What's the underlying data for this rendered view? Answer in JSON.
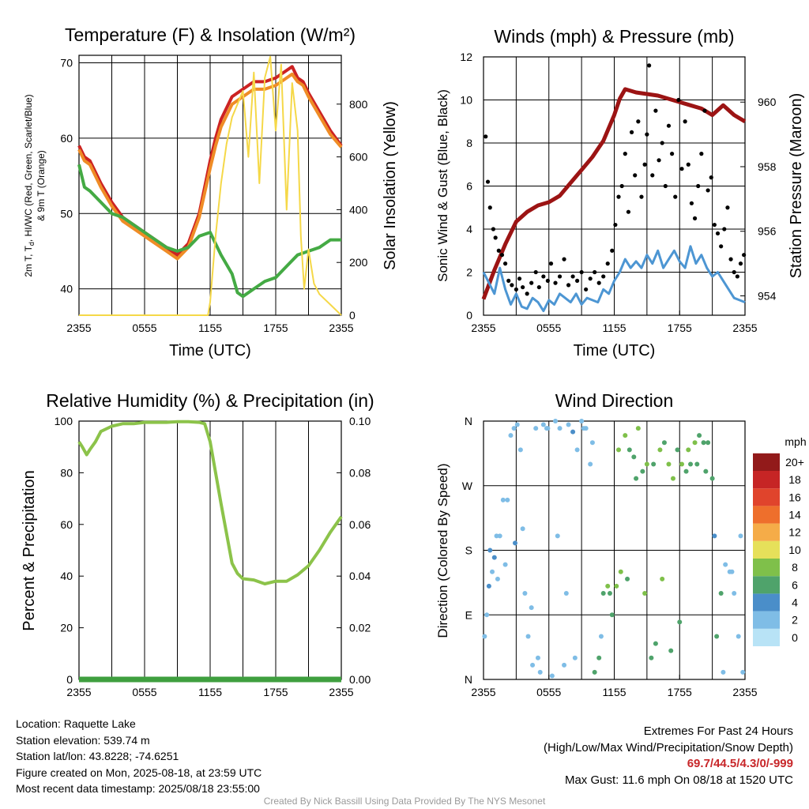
{
  "colors": {
    "temp": "#cc2222",
    "wc": "#ef8c26",
    "dewpoint": "#44aa44",
    "solar": "#f5d848",
    "pressure": "#9c1414",
    "wind": "#4d96d3",
    "gust": "#000000",
    "rh": "#8cc34a",
    "precip": "#3f9f3f"
  },
  "chart_data": [
    {
      "type": "line",
      "title": "Temperature (F) & Insolation (W/m²)",
      "xlabel": "Time (UTC)",
      "ylabel": "2m T, Td, HI/WC (Red, Green, Scarlet/Blue) & 9m T (Orange)",
      "ylabel_lines": [
        "2m T, T",
        "d",
        ", HI/WC (Red, Green, Scarlet/Blue)",
        "& 9m T (Orange)"
      ],
      "y2label": "Solar Insolation (Yellow)",
      "xticks": [
        "2355",
        "0555",
        "1155",
        "1755",
        "2355"
      ],
      "ylim": [
        36.5,
        71
      ],
      "yticks": [
        40,
        50,
        60,
        70
      ],
      "y2lim": [
        0,
        985
      ],
      "y2ticks": [
        0,
        200,
        400,
        600,
        800
      ],
      "x_hours": [
        0,
        24
      ],
      "series": [
        {
          "name": "2m T",
          "color": "temp",
          "x": [
            0,
            0.5,
            1,
            2,
            3,
            4,
            5,
            6,
            7,
            8,
            9,
            10,
            11,
            12,
            12.5,
            13,
            14,
            15,
            16,
            17,
            18,
            19,
            19.5,
            20,
            20.5,
            21,
            22,
            23,
            24
          ],
          "y": [
            59,
            57.5,
            57,
            54,
            51.5,
            49.5,
            48.5,
            47.5,
            46.5,
            45.5,
            44.5,
            46,
            50,
            57,
            60,
            62.5,
            65.5,
            66.5,
            67.5,
            67.5,
            68,
            69,
            69.5,
            68,
            67.5,
            66,
            63.5,
            61,
            59
          ]
        },
        {
          "name": "HI/WC",
          "color": "temp",
          "x": [
            0,
            24
          ],
          "y": [
            null,
            null
          ]
        },
        {
          "name": "9m T",
          "color": "wc",
          "x": [
            0,
            0.5,
            1,
            2,
            3,
            4,
            5,
            6,
            7,
            8,
            9,
            10,
            11,
            12,
            12.5,
            13,
            14,
            15,
            16,
            17,
            18,
            19,
            19.5,
            20,
            20.5,
            21,
            22,
            23,
            24
          ],
          "y": [
            58.5,
            57,
            56.5,
            53.5,
            51,
            49,
            48,
            47,
            46,
            45,
            44,
            45.5,
            49.5,
            56,
            59,
            61.5,
            64.5,
            65.5,
            66.5,
            66.5,
            67,
            68,
            68.5,
            67.5,
            67,
            65.5,
            63,
            60.5,
            58.8
          ]
        },
        {
          "name": "Td",
          "color": "dewpoint",
          "x": [
            0,
            0.5,
            1,
            2,
            3,
            4,
            5,
            6,
            7,
            8,
            9,
            10,
            11,
            12,
            13,
            14,
            14.5,
            15,
            16,
            17,
            18,
            19,
            20,
            21,
            22,
            23,
            24
          ],
          "y": [
            56.5,
            53.5,
            53,
            51.5,
            50,
            49.5,
            48.5,
            47.5,
            46.5,
            45.5,
            45,
            45.5,
            47,
            47.5,
            44.5,
            42,
            39.5,
            39,
            40,
            41,
            41.5,
            43,
            44.5,
            45,
            45.5,
            46.5,
            46.5
          ]
        },
        {
          "name": "Solar",
          "color": "solar",
          "axis": "y2",
          "x": [
            0,
            11.8,
            12,
            12.5,
            13,
            13.5,
            14,
            15,
            15.5,
            16,
            16.5,
            17,
            17.5,
            18,
            18.5,
            19,
            19.5,
            20,
            20.3,
            20.6,
            21,
            21.5,
            22,
            23,
            24
          ],
          "y": [
            0,
            0,
            50,
            300,
            500,
            650,
            750,
            850,
            600,
            920,
            500,
            900,
            980,
            700,
            950,
            400,
            880,
            700,
            300,
            100,
            250,
            120,
            80,
            40,
            0
          ]
        }
      ]
    },
    {
      "type": "line",
      "title": "Winds (mph) & Pressure (mb)",
      "xlabel": "Time (UTC)",
      "ylabel": "Sonic Wind & Gust (Blue, Black)",
      "y2label": "Station Pressure (Maroon)",
      "xticks": [
        "2355",
        "0555",
        "1155",
        "1755",
        "2355"
      ],
      "ylim": [
        0,
        12
      ],
      "yticks": [
        0,
        2,
        4,
        6,
        8,
        10,
        12
      ],
      "y2lim": [
        953.4,
        961.4
      ],
      "y2ticks": [
        954,
        956,
        958,
        960
      ],
      "series": [
        {
          "name": "Pressure",
          "color": "pressure",
          "axis": "y2",
          "x": [
            0,
            1,
            2,
            3,
            4,
            5,
            6,
            7,
            8,
            9,
            10,
            11,
            12,
            12.5,
            13,
            14,
            15,
            16,
            17,
            18,
            19,
            20,
            21,
            22,
            23,
            24
          ],
          "y": [
            953.9,
            954.8,
            955.6,
            956.3,
            956.6,
            956.8,
            956.9,
            957.1,
            957.5,
            957.9,
            958.3,
            958.8,
            959.6,
            960.1,
            960.4,
            960.3,
            960.25,
            960.2,
            960.1,
            960.0,
            959.9,
            959.8,
            959.6,
            959.9,
            959.6,
            959.4
          ]
        },
        {
          "name": "Sonic Wind",
          "color": "wind",
          "x": [
            0,
            0.5,
            1,
            1.5,
            2,
            2.5,
            3,
            3.5,
            4,
            4.5,
            5,
            5.5,
            6,
            6.5,
            7,
            7.5,
            8,
            8.5,
            9,
            9.5,
            10,
            10.5,
            11,
            11.5,
            12,
            12.5,
            13,
            13.5,
            14,
            14.5,
            15,
            15.5,
            16,
            16.5,
            17,
            17.5,
            18,
            18.5,
            19,
            19.5,
            20,
            20.5,
            21,
            21.5,
            22,
            22.5,
            23,
            23.5,
            24
          ],
          "y": [
            2,
            1.5,
            1.0,
            2.2,
            1.2,
            0.5,
            1.0,
            0.4,
            0.3,
            0.8,
            0.6,
            0.2,
            0.7,
            0.5,
            1.0,
            0.8,
            0.6,
            1.0,
            0.5,
            0.8,
            0.7,
            0.6,
            1.2,
            1.0,
            1.6,
            2.0,
            2.6,
            2.2,
            2.5,
            2.2,
            2.8,
            2.4,
            3.0,
            2.2,
            2.6,
            3.0,
            2.5,
            2.2,
            3.2,
            2.4,
            2.8,
            2.2,
            1.8,
            2.0,
            1.6,
            1.2,
            0.8,
            0.7,
            0.6
          ]
        },
        {
          "name": "Gust",
          "color": "gust",
          "type": "scatter",
          "x": [
            0.2,
            0.4,
            0.6,
            0.9,
            1.1,
            1.4,
            1.7,
            2.0,
            2.3,
            2.6,
            3.0,
            3.3,
            3.6,
            4.0,
            4.4,
            4.8,
            5.1,
            5.5,
            5.9,
            6.2,
            6.6,
            7.0,
            7.4,
            7.8,
            8.2,
            8.6,
            9.0,
            9.4,
            9.8,
            10.2,
            10.6,
            11.0,
            11.4,
            11.8,
            12.1,
            12.4,
            12.7,
            13.0,
            13.3,
            13.6,
            13.9,
            14.2,
            14.5,
            14.8,
            15.0,
            15.2,
            15.5,
            15.8,
            16.1,
            16.4,
            16.7,
            17.0,
            17.3,
            17.6,
            17.9,
            18.2,
            18.5,
            18.8,
            19.1,
            19.4,
            19.7,
            20.0,
            20.3,
            20.6,
            20.9,
            21.2,
            21.5,
            21.8,
            22.1,
            22.4,
            22.7,
            23.0,
            23.3,
            23.6,
            23.9
          ],
          "y": [
            8.3,
            6.2,
            5.0,
            4.0,
            3.6,
            3.0,
            2.8,
            2.4,
            1.6,
            1.4,
            1.2,
            1.7,
            1.3,
            1.0,
            1.5,
            2.0,
            1.3,
            1.8,
            1.6,
            2.4,
            1.5,
            1.8,
            2.6,
            1.4,
            1.8,
            1.6,
            2.0,
            1.2,
            1.7,
            2.0,
            1.5,
            1.8,
            2.4,
            3.0,
            4.2,
            5.5,
            6.0,
            7.5,
            4.8,
            8.5,
            6.5,
            9.0,
            5.5,
            7.0,
            8.4,
            11.6,
            6.5,
            9.5,
            7.2,
            8.0,
            6.0,
            8.8,
            7.5,
            5.5,
            10.0,
            6.8,
            9.0,
            7.0,
            5.2,
            4.5,
            6.0,
            7.5,
            9.5,
            5.8,
            6.4,
            4.2,
            3.8,
            3.2,
            4.0,
            5.0,
            2.6,
            2.0,
            1.8,
            2.4,
            2.8
          ]
        }
      ]
    },
    {
      "type": "line",
      "title": "Relative Humidity (%) & Precipitation (in)",
      "xlabel": "",
      "ylabel": "Percent & Precipitation",
      "xticks": [
        "2355",
        "0555",
        "1155",
        "1755",
        "2355"
      ],
      "ylim": [
        0,
        100
      ],
      "yticks": [
        0,
        20,
        40,
        60,
        80,
        100
      ],
      "y2lim": [
        0,
        0.1
      ],
      "y2ticks": [
        "0.00",
        "0.02",
        "0.04",
        "0.06",
        "0.08",
        "0.10"
      ],
      "series": [
        {
          "name": "RH",
          "color": "rh",
          "x": [
            0,
            0.3,
            0.7,
            1,
            1.5,
            2,
            3,
            4,
            5,
            6,
            7,
            8,
            9,
            10,
            11,
            11.5,
            12,
            13,
            14,
            14.5,
            15,
            16,
            17,
            18,
            19,
            20,
            21,
            22,
            23,
            24
          ],
          "y": [
            92,
            90,
            87,
            89,
            92,
            96,
            98,
            99,
            99,
            99.5,
            99.5,
            99.5,
            99.8,
            99.8,
            99.5,
            99,
            92,
            68,
            45,
            41,
            39,
            38.5,
            37,
            38,
            38,
            40.5,
            44,
            50,
            57,
            63
          ]
        },
        {
          "name": "Precipitation",
          "color": "precip",
          "axis": "y2",
          "x": [
            0,
            24
          ],
          "y": [
            0,
            0
          ]
        }
      ]
    },
    {
      "type": "scatter",
      "title": "Wind Direction",
      "xlabel": "",
      "ylabel": "Direction (Colored By Speed)",
      "xticks": [
        "2355",
        "0555",
        "1155",
        "1755",
        "2355"
      ],
      "yticks": [
        "N",
        "E",
        "S",
        "W",
        "N"
      ],
      "ylim": [
        0,
        360
      ],
      "colorbar": {
        "unit": "mph",
        "levels": [
          "0",
          "2",
          "4",
          "6",
          "8",
          "10",
          "12",
          "14",
          "16",
          "18",
          "20+"
        ],
        "colors": [
          "#b8e3f6",
          "#7fbde6",
          "#4a8ec9",
          "#4fa36b",
          "#7fc04a",
          "#e6e05a",
          "#f5ac48",
          "#ee6f2c",
          "#e0442c",
          "#c62525",
          "#921a1a"
        ]
      },
      "points": {
        "x": [
          0.1,
          0.3,
          0.5,
          0.8,
          1.0,
          1.3,
          1.5,
          1.8,
          2.2,
          2.5,
          2.8,
          3.1,
          3.4,
          3.8,
          4.1,
          4.5,
          4.8,
          5.2,
          5.5,
          5.9,
          6.3,
          6.6,
          7.0,
          7.4,
          7.8,
          8.2,
          8.6,
          9.0,
          9.4,
          9.8,
          10.2,
          10.6,
          11.0,
          11.4,
          11.8,
          12.2,
          12.6,
          13.0,
          13.4,
          13.8,
          14.2,
          14.6,
          15.0,
          15.4,
          15.8,
          16.2,
          16.6,
          17.0,
          17.4,
          17.8,
          18.2,
          18.6,
          19.0,
          19.4,
          19.8,
          20.2,
          20.6,
          21.0,
          21.4,
          21.8,
          22.2,
          22.6,
          23.0,
          23.4,
          23.8,
          0.6,
          1.2,
          2.0,
          2.9,
          3.6,
          4.4,
          5.0,
          5.8,
          6.8,
          7.6,
          8.4,
          9.2,
          10.0,
          10.8,
          11.6,
          12.4,
          13.2,
          14.0,
          14.8,
          15.6,
          16.4,
          17.2,
          18.0,
          18.8,
          19.6,
          20.4,
          21.2,
          22.0,
          22.8,
          23.6
        ],
        "y": [
          60,
          90,
          130,
          150,
          170,
          140,
          200,
          250,
          250,
          340,
          350,
          355,
          320,
          120,
          60,
          20,
          350,
          10,
          355,
          350,
          5,
          360,
          350,
          20,
          355,
          345,
          320,
          360,
          350,
          300,
          10,
          30,
          120,
          130,
          90,
          130,
          150,
          340,
          320,
          310,
          350,
          290,
          300,
          30,
          50,
          320,
          330,
          300,
          280,
          320,
          300,
          290,
          300,
          330,
          340,
          330,
          330,
          280,
          60,
          120,
          160,
          150,
          120,
          60,
          10,
          180,
          200,
          160,
          190,
          210,
          100,
          30,
          350,
          200,
          120,
          30,
          350,
          330,
          60,
          120,
          320,
          140,
          280,
          120,
          300,
          140,
          40,
          80,
          320,
          300,
          290,
          200,
          10,
          150,
          200
        ],
        "speed": [
          1,
          1,
          2,
          1,
          2,
          1,
          1,
          1,
          1,
          1,
          1,
          1,
          1,
          1,
          1,
          1,
          1,
          1,
          1,
          1,
          1,
          1,
          1,
          1,
          1,
          2,
          1,
          1,
          1,
          1,
          3,
          3,
          3,
          4,
          3,
          4,
          4,
          4,
          3,
          3,
          4,
          3,
          4,
          3,
          3,
          4,
          3,
          4,
          4,
          3,
          4,
          3,
          3,
          4,
          3,
          3,
          3,
          3,
          3,
          3,
          1,
          1,
          1,
          1,
          1,
          2,
          1,
          1,
          2,
          1,
          1,
          1,
          1,
          1,
          1,
          1,
          1,
          1,
          1,
          3,
          4,
          3,
          3,
          4,
          3,
          4,
          3,
          3,
          4,
          3,
          3,
          2,
          1,
          1,
          1
        ]
      }
    }
  ],
  "info": {
    "location": "Location: Raquette Lake",
    "elevation": "Station elevation: 539.74 m",
    "latlon": "Station lat/lon: 43.8228; -74.6251",
    "created": "Figure created on Mon, 2025-08-18, at 23:59 UTC",
    "recent": "Most recent data timestamp: 2025/08/18 23:55:00",
    "extremes_title": "Extremes For Past 24 Hours",
    "extremes_legend": "(High/Low/Max Wind/Precipitation/Snow Depth)",
    "extremes_values": "69.7/44.5/4.3/0/-999",
    "max_gust": "Max Gust: 11.6 mph On 08/18 at 1520 UTC",
    "credit": "Created By Nick Bassill Using Data Provided By The NYS Mesonet"
  }
}
